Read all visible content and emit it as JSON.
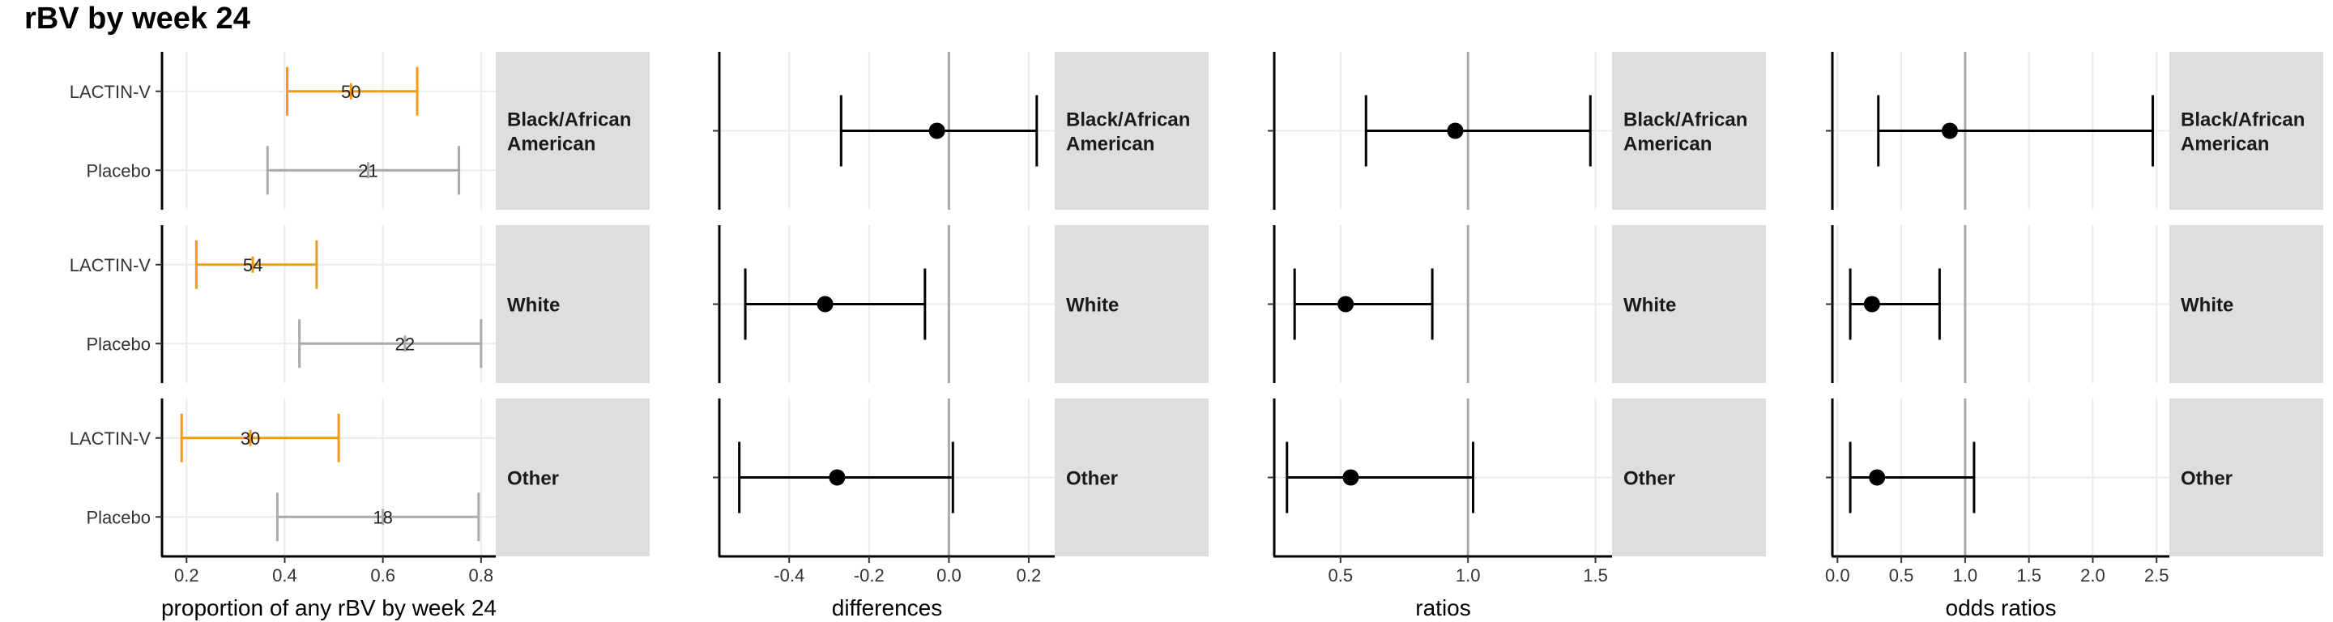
{
  "title": "rBV by week 24",
  "colors": {
    "lactin": "#F39C12",
    "placebo": "#AAAAAA",
    "estimate": "#000000",
    "strip": "#DEDEDE",
    "grid": "#EBEBEB",
    "refline": "#AAAAAA"
  },
  "strata": [
    "Black/African American",
    "White",
    "Other"
  ],
  "chart_data": [
    {
      "type": "forest",
      "panel": "proportions",
      "xlabel": "proportion of any rBV by week 24",
      "xlim": [
        0.15,
        0.83
      ],
      "xticks": [
        0.2,
        0.4,
        0.6,
        0.8
      ],
      "xtick_labels": [
        "0.2",
        "0.4",
        "0.6",
        "0.8"
      ],
      "categories": [
        "LACTIN-V",
        "Placebo"
      ],
      "rows": [
        {
          "stratum": "Black/African American",
          "arms": [
            {
              "arm": "LACTIN-V",
              "estimate": 0.535,
              "lower": 0.405,
              "upper": 0.67,
              "label": "50"
            },
            {
              "arm": "Placebo",
              "estimate": 0.57,
              "lower": 0.365,
              "upper": 0.755,
              "label": "21"
            }
          ]
        },
        {
          "stratum": "White",
          "arms": [
            {
              "arm": "LACTIN-V",
              "estimate": 0.335,
              "lower": 0.22,
              "upper": 0.465,
              "label": "54"
            },
            {
              "arm": "Placebo",
              "estimate": 0.645,
              "lower": 0.43,
              "upper": 0.8,
              "label": "22"
            }
          ]
        },
        {
          "stratum": "Other",
          "arms": [
            {
              "arm": "LACTIN-V",
              "estimate": 0.33,
              "lower": 0.19,
              "upper": 0.51,
              "label": "30"
            },
            {
              "arm": "Placebo",
              "estimate": 0.6,
              "lower": 0.385,
              "upper": 0.795,
              "label": "18"
            }
          ]
        }
      ]
    },
    {
      "type": "forest",
      "panel": "differences",
      "xlabel": "differences",
      "xlim": [
        -0.575,
        0.265
      ],
      "xticks": [
        -0.4,
        -0.2,
        0.0,
        0.2
      ],
      "xtick_labels": [
        "-0.4",
        "-0.2",
        "0.0",
        "0.2"
      ],
      "reference": 0,
      "rows": [
        {
          "stratum": "Black/African American",
          "estimate": -0.03,
          "lower": -0.27,
          "upper": 0.22
        },
        {
          "stratum": "White",
          "estimate": -0.31,
          "lower": -0.51,
          "upper": -0.06
        },
        {
          "stratum": "Other",
          "estimate": -0.28,
          "lower": -0.525,
          "upper": 0.01
        }
      ]
    },
    {
      "type": "forest",
      "panel": "ratios",
      "xlabel": "ratios",
      "xlim": [
        0.24,
        1.565
      ],
      "xticks": [
        0.5,
        1.0,
        1.5
      ],
      "xtick_labels": [
        "0.5",
        "1.0",
        "1.5"
      ],
      "reference": 1,
      "rows": [
        {
          "stratum": "Black/African American",
          "estimate": 0.95,
          "lower": 0.6,
          "upper": 1.48
        },
        {
          "stratum": "White",
          "estimate": 0.52,
          "lower": 0.32,
          "upper": 0.86
        },
        {
          "stratum": "Other",
          "estimate": 0.54,
          "lower": 0.29,
          "upper": 1.02
        }
      ]
    },
    {
      "type": "forest",
      "panel": "odds ratios",
      "xlabel": "odds ratios",
      "xlim": [
        -0.04,
        2.6
      ],
      "xticks": [
        0.0,
        0.5,
        1.0,
        1.5,
        2.0,
        2.5
      ],
      "xtick_labels": [
        "0.0",
        "0.5",
        "1.0",
        "1.5",
        "2.0",
        "2.5"
      ],
      "reference": 1,
      "rows": [
        {
          "stratum": "Black/African American",
          "estimate": 0.88,
          "lower": 0.32,
          "upper": 2.47
        },
        {
          "stratum": "White",
          "estimate": 0.27,
          "lower": 0.1,
          "upper": 0.8
        },
        {
          "stratum": "Other",
          "estimate": 0.31,
          "lower": 0.1,
          "upper": 1.07
        }
      ]
    }
  ]
}
